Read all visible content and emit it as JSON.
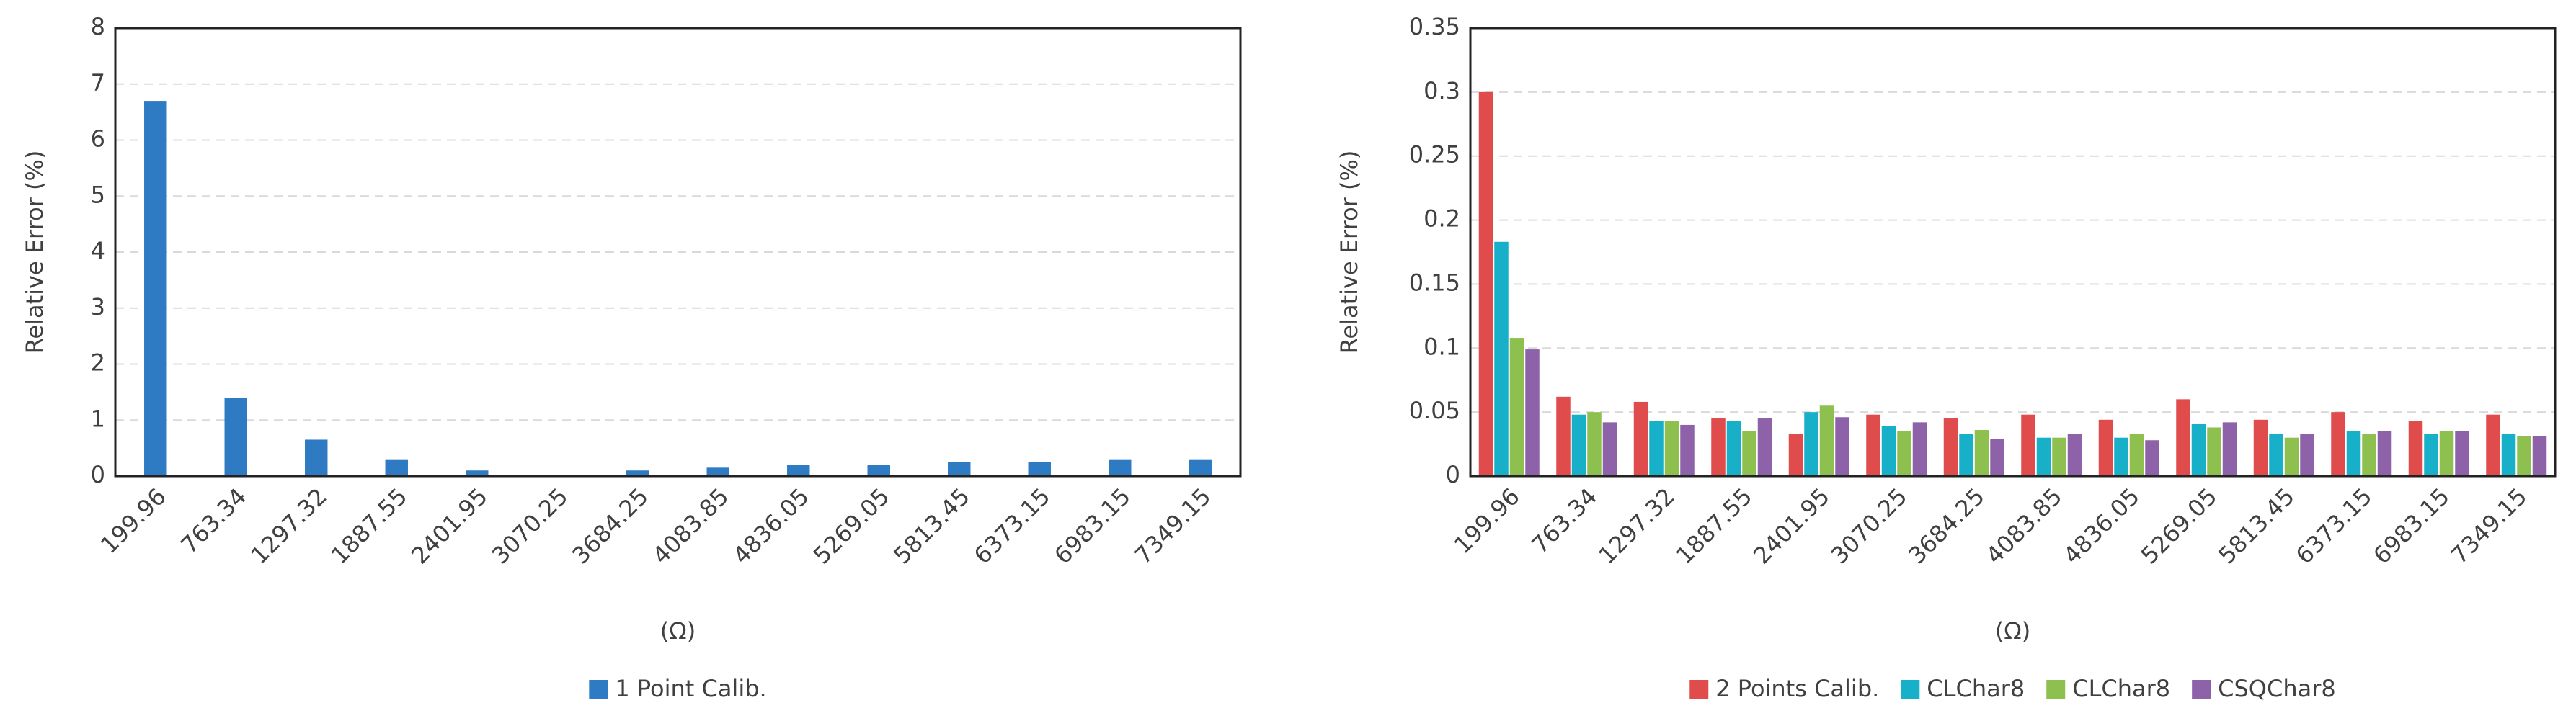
{
  "chart_data": [
    {
      "type": "bar",
      "y_label": "Relative Error (%)",
      "x_label": "(Ω)",
      "categories": [
        "199.96",
        "763.34",
        "1297.32",
        "1887.55",
        "2401.95",
        "3070.25",
        "3684.25",
        "4083.85",
        "4836.05",
        "5269.05",
        "5813.45",
        "6373.15",
        "6983.15",
        "7349.15"
      ],
      "series": [
        {
          "name": "1 Point Calib.",
          "color": "#2e7bc4",
          "values": [
            6.7,
            1.4,
            0.65,
            0.3,
            0.1,
            0.02,
            0.1,
            0.15,
            0.2,
            0.2,
            0.25,
            0.25,
            0.3,
            0.3
          ]
        }
      ],
      "ylim": [
        0,
        8
      ],
      "yticks": [
        0,
        1,
        2,
        3,
        4,
        5,
        6,
        7,
        8
      ],
      "grid": true,
      "legend": "bottom"
    },
    {
      "type": "bar",
      "y_label": "Relative Error (%)",
      "x_label": "(Ω)",
      "categories": [
        "199.96",
        "763.34",
        "1297.32",
        "1887.55",
        "2401.95",
        "3070.25",
        "3684.25",
        "4083.85",
        "4836.05",
        "5269.05",
        "5813.45",
        "6373.15",
        "6983.15",
        "7349.15"
      ],
      "series": [
        {
          "name": "2 Points Calib.",
          "color": "#e04b4b",
          "values": [
            0.3,
            0.062,
            0.058,
            0.045,
            0.033,
            0.048,
            0.045,
            0.048,
            0.044,
            0.06,
            0.044,
            0.05,
            0.043,
            0.048
          ]
        },
        {
          "name": "CLChar8",
          "color": "#17b0c8",
          "values": [
            0.183,
            0.048,
            0.043,
            0.043,
            0.05,
            0.039,
            0.033,
            0.03,
            0.03,
            0.041,
            0.033,
            0.035,
            0.033,
            0.033
          ]
        },
        {
          "name": "CLChar8",
          "color": "#8dc04f",
          "values": [
            0.108,
            0.05,
            0.043,
            0.035,
            0.055,
            0.035,
            0.036,
            0.03,
            0.033,
            0.038,
            0.03,
            0.033,
            0.035,
            0.031
          ]
        },
        {
          "name": "CSQChar8",
          "color": "#8d62a8",
          "values": [
            0.099,
            0.042,
            0.04,
            0.045,
            0.046,
            0.042,
            0.029,
            0.033,
            0.028,
            0.042,
            0.033,
            0.035,
            0.035,
            0.031
          ]
        }
      ],
      "ylim": [
        0,
        0.35
      ],
      "yticks": [
        0,
        0.05,
        0.1,
        0.15,
        0.2,
        0.25,
        0.3,
        0.35
      ],
      "grid": true,
      "legend": "bottom"
    }
  ]
}
